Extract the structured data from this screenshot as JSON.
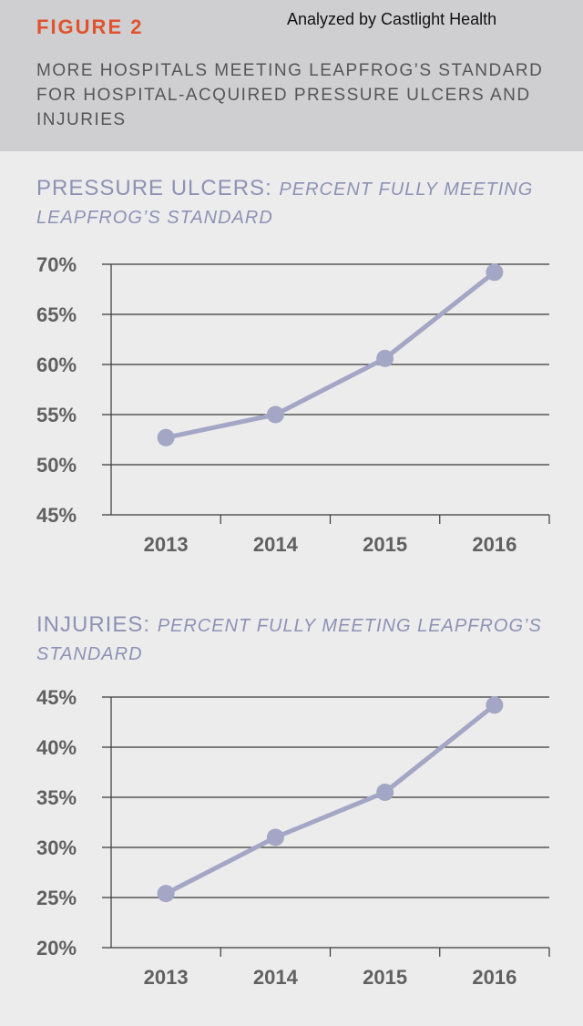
{
  "header": {
    "figure_label": "FIGURE 2",
    "credit": "Analyzed by Castlight Health",
    "title": "MORE HOSPITALS MEETING LEAPFROG’S STANDARD FOR HOSPITAL-ACQUIRED PRESSURE ULCERS AND INJURIES"
  },
  "colors": {
    "line": "#a3a6c4",
    "accent": "#e0532e",
    "title": "#8e92b5",
    "header_bg": "#cfcfd1"
  },
  "chart_data": [
    {
      "type": "line",
      "title": "PRESSURE ULCERS:",
      "subtitle": "PERCENT FULLY MEETING LEAPFROG’S STANDARD",
      "categories": [
        "2013",
        "2014",
        "2015",
        "2016"
      ],
      "values": [
        52.7,
        55.0,
        60.6,
        69.2
      ],
      "ylim": [
        45,
        70
      ],
      "yticks": [
        45,
        50,
        55,
        60,
        65,
        70
      ],
      "ytick_labels": [
        "45%",
        "50%",
        "55%",
        "60%",
        "65%",
        "70%"
      ],
      "grid": true,
      "xlabel": "",
      "ylabel": ""
    },
    {
      "type": "line",
      "title": "INJURIES:",
      "subtitle": "PERCENT FULLY MEETING LEAPFROG’S STANDARD",
      "categories": [
        "2013",
        "2014",
        "2015",
        "2016"
      ],
      "values": [
        25.4,
        31.0,
        35.5,
        44.2
      ],
      "ylim": [
        20,
        45
      ],
      "yticks": [
        20,
        25,
        30,
        35,
        40,
        45
      ],
      "ytick_labels": [
        "20%",
        "25%",
        "30%",
        "35%",
        "40%",
        "45%"
      ],
      "grid": true,
      "xlabel": "",
      "ylabel": ""
    }
  ]
}
